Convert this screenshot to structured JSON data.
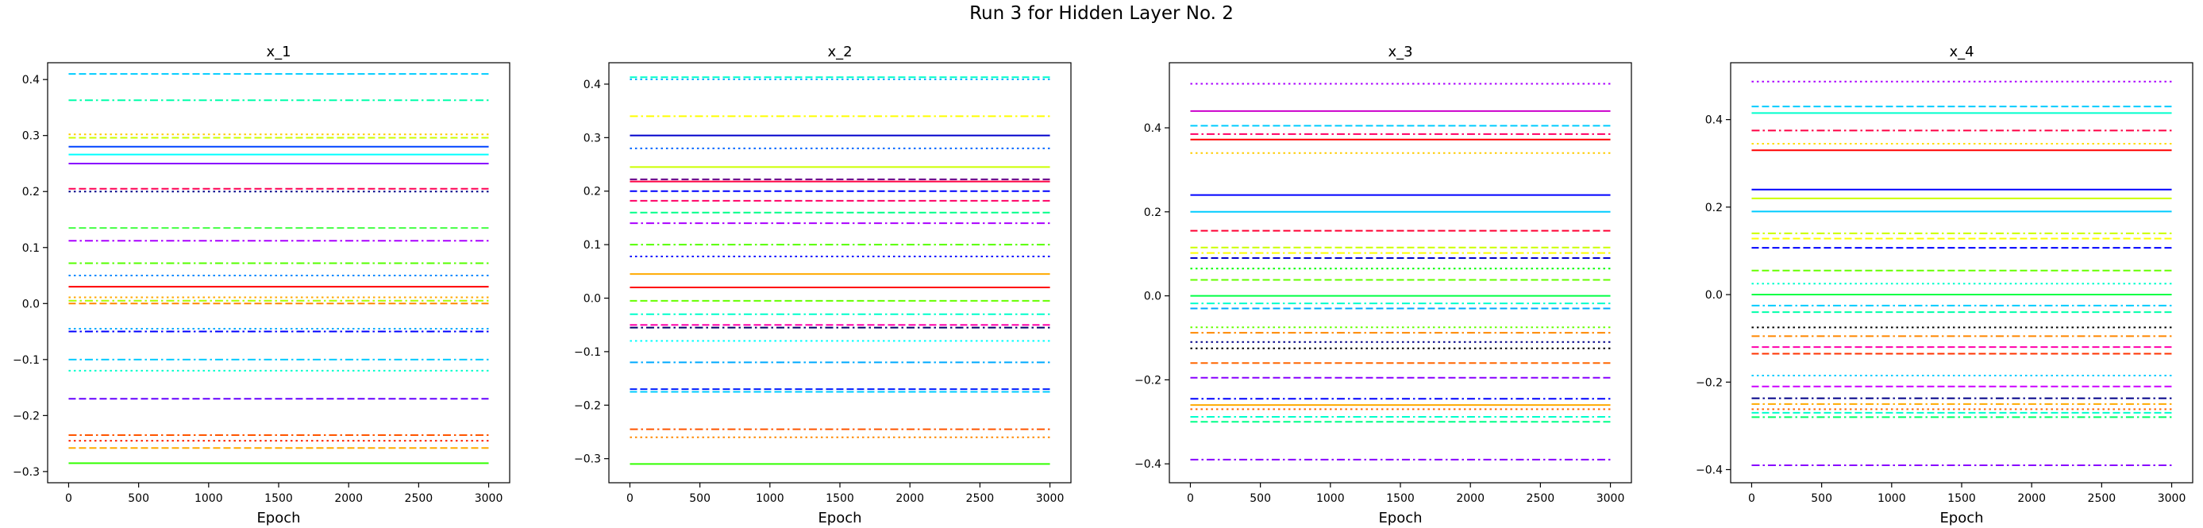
{
  "figure": {
    "title": "Run 3 for Hidden Layer No. 2"
  },
  "chart_data": [
    {
      "type": "line",
      "title": "x_1",
      "xlabel": "Epoch",
      "ylabel": "",
      "xlim": [
        -150,
        3150
      ],
      "ylim": [
        -0.32,
        0.43
      ],
      "xticks": [
        0,
        500,
        1000,
        1500,
        2000,
        2500,
        3000
      ],
      "yticks": [
        -0.3,
        -0.2,
        -0.1,
        0.0,
        0.1,
        0.2,
        0.3,
        0.4
      ],
      "x": [
        0,
        3000
      ],
      "grid": false,
      "series": [
        {
          "y": 0.41,
          "color": "#00ccff",
          "style": "dashed"
        },
        {
          "y": 0.363,
          "color": "#00ffaa",
          "style": "dashdot"
        },
        {
          "y": 0.302,
          "color": "#ffcc00",
          "style": "dotted"
        },
        {
          "y": 0.296,
          "color": "#ccff00",
          "style": "dashed"
        },
        {
          "y": 0.28,
          "color": "#0044ff",
          "style": "solid"
        },
        {
          "y": 0.266,
          "color": "#00ffff",
          "style": "solid"
        },
        {
          "y": 0.25,
          "color": "#8800ff",
          "style": "solid"
        },
        {
          "y": 0.205,
          "color": "#ff0055",
          "style": "dashed"
        },
        {
          "y": 0.2,
          "color": "#000088",
          "style": "dotted"
        },
        {
          "y": 0.135,
          "color": "#44ff44",
          "style": "dashed"
        },
        {
          "y": 0.112,
          "color": "#aa00ff",
          "style": "dashdot"
        },
        {
          "y": 0.072,
          "color": "#55ff00",
          "style": "dashdot"
        },
        {
          "y": 0.05,
          "color": "#0088ff",
          "style": "dotted"
        },
        {
          "y": 0.03,
          "color": "#ff0000",
          "style": "solid"
        },
        {
          "y": 0.011,
          "color": "#ffaa00",
          "style": "dotted"
        },
        {
          "y": 0.005,
          "color": "#aaff00",
          "style": "dashdot"
        },
        {
          "y": 0.0,
          "color": "#ff8800",
          "style": "dashed"
        },
        {
          "y": -0.045,
          "color": "#00aaff",
          "style": "dotted"
        },
        {
          "y": -0.05,
          "color": "#0000ff",
          "style": "dashdot"
        },
        {
          "y": -0.1,
          "color": "#00ccff",
          "style": "dashdot"
        },
        {
          "y": -0.12,
          "color": "#00ffcc",
          "style": "dotted"
        },
        {
          "y": -0.17,
          "color": "#6600ff",
          "style": "dashed"
        },
        {
          "y": -0.235,
          "color": "#ff5500",
          "style": "dashdot"
        },
        {
          "y": -0.245,
          "color": "#ff2200",
          "style": "dotted"
        },
        {
          "y": -0.258,
          "color": "#ffaa00",
          "style": "dashed"
        },
        {
          "y": -0.285,
          "color": "#33ff00",
          "style": "solid"
        }
      ]
    },
    {
      "type": "line",
      "title": "x_2",
      "xlabel": "Epoch",
      "ylabel": "",
      "xlim": [
        -150,
        3150
      ],
      "ylim": [
        -0.345,
        0.44
      ],
      "xticks": [
        0,
        500,
        1000,
        1500,
        2000,
        2500,
        3000
      ],
      "yticks": [
        -0.3,
        -0.2,
        -0.1,
        0.0,
        0.1,
        0.2,
        0.3,
        0.4
      ],
      "x": [
        0,
        3000
      ],
      "grid": false,
      "series": [
        {
          "y": 0.413,
          "color": "#00ffcc",
          "style": "dashed"
        },
        {
          "y": 0.409,
          "color": "#00aaff",
          "style": "dotted"
        },
        {
          "y": 0.34,
          "color": "#ffff00",
          "style": "dashdot"
        },
        {
          "y": 0.304,
          "color": "#0000cc",
          "style": "solid"
        },
        {
          "y": 0.28,
          "color": "#0066ff",
          "style": "dotted"
        },
        {
          "y": 0.245,
          "color": "#ccff00",
          "style": "solid"
        },
        {
          "y": 0.222,
          "color": "#660088",
          "style": "dashed"
        },
        {
          "y": 0.218,
          "color": "#ff0044",
          "style": "solid"
        },
        {
          "y": 0.2,
          "color": "#0000ff",
          "style": "dashed"
        },
        {
          "y": 0.182,
          "color": "#ff0066",
          "style": "dashed"
        },
        {
          "y": 0.16,
          "color": "#00ff88",
          "style": "dashed"
        },
        {
          "y": 0.14,
          "color": "#aa00ff",
          "style": "dashdot"
        },
        {
          "y": 0.1,
          "color": "#55ff00",
          "style": "dashdot"
        },
        {
          "y": 0.078,
          "color": "#0000ff",
          "style": "dotted"
        },
        {
          "y": 0.045,
          "color": "#ffaa00",
          "style": "solid"
        },
        {
          "y": 0.02,
          "color": "#ff0000",
          "style": "solid"
        },
        {
          "y": -0.005,
          "color": "#66ff00",
          "style": "dashed"
        },
        {
          "y": -0.03,
          "color": "#00ffcc",
          "style": "dashdot"
        },
        {
          "y": -0.05,
          "color": "#ff00aa",
          "style": "dashed"
        },
        {
          "y": -0.055,
          "color": "#000066",
          "style": "dashdot"
        },
        {
          "y": -0.08,
          "color": "#00ffff",
          "style": "dotted"
        },
        {
          "y": -0.12,
          "color": "#00aaff",
          "style": "dashdot"
        },
        {
          "y": -0.17,
          "color": "#0022ff",
          "style": "dashed"
        },
        {
          "y": -0.175,
          "color": "#00ccff",
          "style": "dashed"
        },
        {
          "y": -0.245,
          "color": "#ff5500",
          "style": "dashdot"
        },
        {
          "y": -0.26,
          "color": "#ff8800",
          "style": "dotted"
        },
        {
          "y": -0.31,
          "color": "#33ff00",
          "style": "solid"
        }
      ]
    },
    {
      "type": "line",
      "title": "x_3",
      "xlabel": "Epoch",
      "ylabel": "",
      "xlim": [
        -150,
        3150
      ],
      "ylim": [
        -0.445,
        0.555
      ],
      "xticks": [
        0,
        500,
        1000,
        1500,
        2000,
        2500,
        3000
      ],
      "yticks": [
        -0.4,
        -0.2,
        0.0,
        0.2,
        0.4
      ],
      "x": [
        0,
        3000
      ],
      "grid": false,
      "series": [
        {
          "y": 0.505,
          "color": "#aa00ff",
          "style": "dotted"
        },
        {
          "y": 0.44,
          "color": "#cc00cc",
          "style": "solid"
        },
        {
          "y": 0.405,
          "color": "#00ccff",
          "style": "dashed"
        },
        {
          "y": 0.385,
          "color": "#ff0066",
          "style": "dashdot"
        },
        {
          "y": 0.372,
          "color": "#ff0000",
          "style": "solid"
        },
        {
          "y": 0.34,
          "color": "#ffcc00",
          "style": "dotted"
        },
        {
          "y": 0.24,
          "color": "#0000ff",
          "style": "solid"
        },
        {
          "y": 0.2,
          "color": "#00ccff",
          "style": "solid"
        },
        {
          "y": 0.155,
          "color": "#ff0033",
          "style": "dashed"
        },
        {
          "y": 0.115,
          "color": "#ccff00",
          "style": "dashed"
        },
        {
          "y": 0.102,
          "color": "#ffff00",
          "style": "dashdot"
        },
        {
          "y": 0.09,
          "color": "#0000cc",
          "style": "dashed"
        },
        {
          "y": 0.065,
          "color": "#00ff00",
          "style": "dotted"
        },
        {
          "y": 0.038,
          "color": "#66ff00",
          "style": "dashed"
        },
        {
          "y": 0.0,
          "color": "#00ff44",
          "style": "solid"
        },
        {
          "y": -0.018,
          "color": "#00ffcc",
          "style": "dashdot"
        },
        {
          "y": -0.03,
          "color": "#00aaff",
          "style": "dashed"
        },
        {
          "y": -0.075,
          "color": "#66ff00",
          "style": "dotted"
        },
        {
          "y": -0.088,
          "color": "#ff8800",
          "style": "dashdot"
        },
        {
          "y": -0.11,
          "color": "#000088",
          "style": "dotted"
        },
        {
          "y": -0.125,
          "color": "#000000",
          "style": "dotted"
        },
        {
          "y": -0.16,
          "color": "#ff6600",
          "style": "dashed"
        },
        {
          "y": -0.195,
          "color": "#8800ff",
          "style": "dashed"
        },
        {
          "y": -0.245,
          "color": "#0000ff",
          "style": "dashdot"
        },
        {
          "y": -0.26,
          "color": "#ffaa00",
          "style": "solid"
        },
        {
          "y": -0.27,
          "color": "#ff6600",
          "style": "dotted"
        },
        {
          "y": -0.288,
          "color": "#00ffcc",
          "style": "dashdot"
        },
        {
          "y": -0.3,
          "color": "#00ff88",
          "style": "dashed"
        },
        {
          "y": -0.39,
          "color": "#8800ff",
          "style": "dashdot"
        }
      ]
    },
    {
      "type": "line",
      "title": "x_4",
      "xlabel": "Epoch",
      "ylabel": "",
      "xlim": [
        -150,
        3150
      ],
      "ylim": [
        -0.43,
        0.53
      ],
      "xticks": [
        0,
        500,
        1000,
        1500,
        2000,
        2500,
        3000
      ],
      "yticks": [
        -0.4,
        -0.2,
        0.0,
        0.2,
        0.4
      ],
      "x": [
        0,
        3000
      ],
      "grid": false,
      "series": [
        {
          "y": 0.487,
          "color": "#aa00ff",
          "style": "dotted"
        },
        {
          "y": 0.43,
          "color": "#00ccff",
          "style": "dashed"
        },
        {
          "y": 0.415,
          "color": "#00ffcc",
          "style": "solid"
        },
        {
          "y": 0.375,
          "color": "#ff0044",
          "style": "dashdot"
        },
        {
          "y": 0.345,
          "color": "#ffdd00",
          "style": "dotted"
        },
        {
          "y": 0.33,
          "color": "#ff0000",
          "style": "solid"
        },
        {
          "y": 0.24,
          "color": "#0000ff",
          "style": "solid"
        },
        {
          "y": 0.22,
          "color": "#ccff00",
          "style": "solid"
        },
        {
          "y": 0.19,
          "color": "#00ccff",
          "style": "solid"
        },
        {
          "y": 0.14,
          "color": "#ccff00",
          "style": "dashdot"
        },
        {
          "y": 0.128,
          "color": "#ffff00",
          "style": "dashed"
        },
        {
          "y": 0.107,
          "color": "#0000ff",
          "style": "dashed"
        },
        {
          "y": 0.055,
          "color": "#66ff00",
          "style": "dashed"
        },
        {
          "y": 0.025,
          "color": "#00ffcc",
          "style": "dotted"
        },
        {
          "y": 0.0,
          "color": "#00ff44",
          "style": "solid"
        },
        {
          "y": -0.025,
          "color": "#00ccff",
          "style": "dashdot"
        },
        {
          "y": -0.04,
          "color": "#00ffaa",
          "style": "dashed"
        },
        {
          "y": -0.075,
          "color": "#000000",
          "style": "dotted"
        },
        {
          "y": -0.095,
          "color": "#ff8800",
          "style": "dashdot"
        },
        {
          "y": -0.12,
          "color": "#ff00aa",
          "style": "dashed"
        },
        {
          "y": -0.135,
          "color": "#ff3300",
          "style": "dashed"
        },
        {
          "y": -0.185,
          "color": "#00ccff",
          "style": "dotted"
        },
        {
          "y": -0.21,
          "color": "#cc00ff",
          "style": "dashed"
        },
        {
          "y": -0.237,
          "color": "#000088",
          "style": "dashdot"
        },
        {
          "y": -0.25,
          "color": "#ffaa00",
          "style": "dashdot"
        },
        {
          "y": -0.262,
          "color": "#ff6600",
          "style": "dotted"
        },
        {
          "y": -0.27,
          "color": "#00ffcc",
          "style": "dashed"
        },
        {
          "y": -0.28,
          "color": "#00ff66",
          "style": "dashdot"
        },
        {
          "y": -0.39,
          "color": "#8800ff",
          "style": "dashdot"
        }
      ]
    }
  ]
}
